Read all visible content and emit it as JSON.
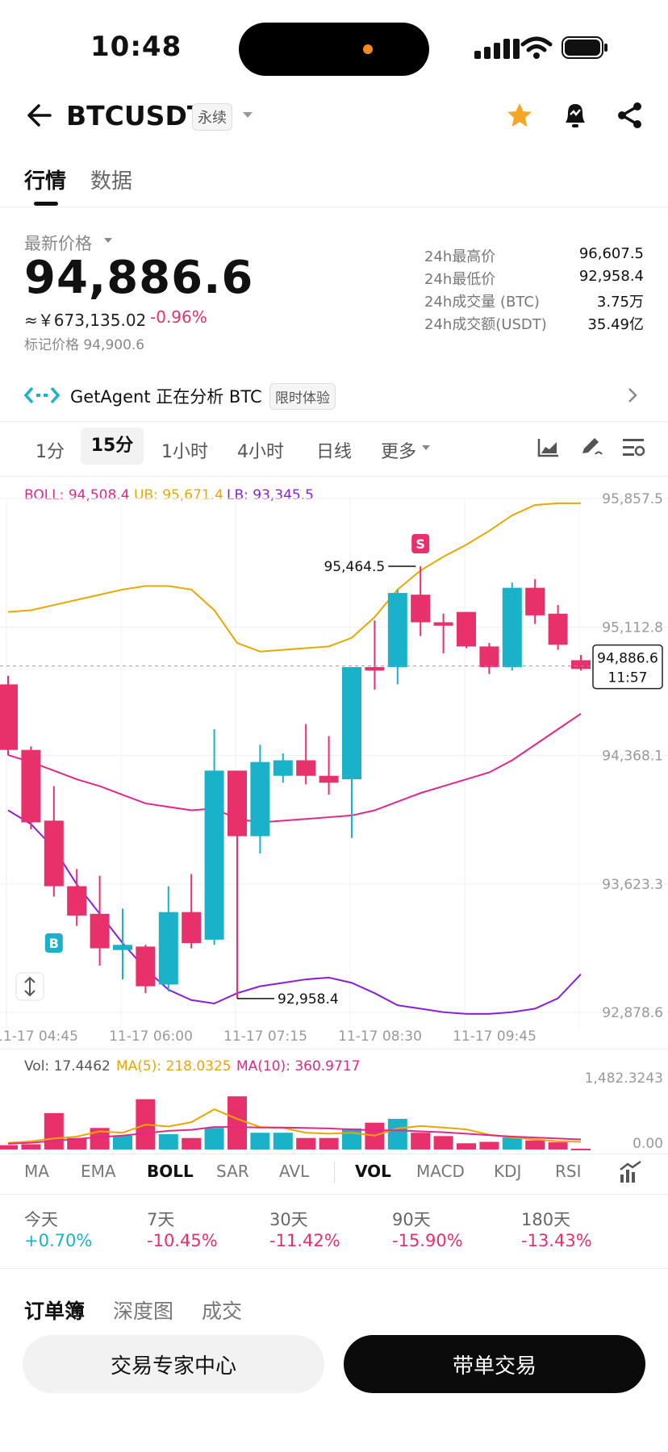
{
  "status_bar": {
    "time": "10:48"
  },
  "header": {
    "symbol": "BTCUSDT",
    "tag": "永续"
  },
  "tabs": [
    {
      "label": "行情"
    },
    {
      "label": "数据"
    }
  ],
  "price": {
    "label": "最新价格",
    "last": "94,886.6",
    "cny": "≈￥673,135.02",
    "change": "-0.96%",
    "mark": "标记价格 94,900.6"
  },
  "stats": [
    {
      "label": "24h最高价",
      "value": "96,607.5"
    },
    {
      "label": "24h最低价",
      "value": "92,958.4"
    },
    {
      "label": "24h成交量 (BTC)",
      "value": "3.75万"
    },
    {
      "label": "24h成交额(USDT)",
      "value": "35.49亿"
    }
  ],
  "banner": {
    "text": "GetAgent 正在分析 BTC",
    "badge": "限时体验"
  },
  "timeframes": [
    {
      "label": "1分"
    },
    {
      "label": "15分"
    },
    {
      "label": "1小时"
    },
    {
      "label": "4小时"
    },
    {
      "label": "日线"
    },
    {
      "label": "更多"
    }
  ],
  "active_timeframe": "15分",
  "colors": {
    "up": "#1ab2c8",
    "down": "#e8306a",
    "ub": "#e8a800",
    "boll": "#e0288a",
    "lb": "#8a1fd8",
    "star": "#f5a623"
  },
  "chart_data": {
    "type": "candlestick",
    "legend": {
      "boll": "BOLL: 94,508.4",
      "ub": "UB: 95,671.4",
      "lb": "LB: 93,345.5"
    },
    "y_ticks": [
      "95,857.5",
      "95,112.8",
      "94,368.1",
      "93,623.3",
      "92,878.6"
    ],
    "ylim": [
      92878.6,
      95857.5
    ],
    "x_ticks": [
      "11-17 04:45",
      "11-17 06:00",
      "11-17 07:15",
      "11-17 08:30",
      "11-17 09:45"
    ],
    "current_price": "94,886.6",
    "countdown": "11:57",
    "annotations": {
      "high": "95,464.5",
      "low": "92,958.4",
      "sell_marker": "S",
      "buy_marker": "B"
    },
    "candles": [
      {
        "o": 94780,
        "h": 94830,
        "c": 94400,
        "l": 94370
      },
      {
        "o": 94400,
        "h": 94420,
        "c": 93980,
        "l": 93940
      },
      {
        "o": 93990,
        "h": 94190,
        "c": 93610,
        "l": 93550
      },
      {
        "o": 93610,
        "h": 93710,
        "c": 93440,
        "l": 93380
      },
      {
        "o": 93450,
        "h": 93670,
        "c": 93250,
        "l": 93150
      },
      {
        "o": 93240,
        "h": 93480,
        "c": 93270,
        "l": 93070
      },
      {
        "o": 93260,
        "h": 93270,
        "c": 93030,
        "l": 92990
      },
      {
        "o": 93040,
        "h": 93610,
        "c": 93460,
        "l": 93000
      },
      {
        "o": 93460,
        "h": 93680,
        "c": 93280,
        "l": 93250
      },
      {
        "o": 93300,
        "h": 94520,
        "c": 94280,
        "l": 93270
      },
      {
        "o": 94280,
        "h": 94280,
        "c": 93900,
        "l": 92958.4
      },
      {
        "o": 93900,
        "h": 94430,
        "c": 94330,
        "l": 93800
      },
      {
        "o": 94250,
        "h": 94380,
        "c": 94340,
        "l": 94210
      },
      {
        "o": 94340,
        "h": 94550,
        "c": 94250,
        "l": 94200
      },
      {
        "o": 94250,
        "h": 94480,
        "c": 94210,
        "l": 94140
      },
      {
        "o": 94230,
        "h": 94880,
        "c": 94880,
        "l": 93890
      },
      {
        "o": 94880,
        "h": 95150,
        "c": 94860,
        "l": 94750
      },
      {
        "o": 94880,
        "h": 95330,
        "c": 95310,
        "l": 94780
      },
      {
        "o": 95300,
        "h": 95464.5,
        "c": 95140,
        "l": 95060
      },
      {
        "o": 95140,
        "h": 95190,
        "c": 95120,
        "l": 94960
      },
      {
        "o": 95200,
        "h": 95200,
        "c": 95000,
        "l": 94990
      },
      {
        "o": 95000,
        "h": 95020,
        "c": 94880,
        "l": 94840
      },
      {
        "o": 94880,
        "h": 95370,
        "c": 95340,
        "l": 94860
      },
      {
        "o": 95340,
        "h": 95390,
        "c": 95180,
        "l": 95130
      },
      {
        "o": 95190,
        "h": 95240,
        "c": 95010,
        "l": 94980
      },
      {
        "o": 94920,
        "h": 94950,
        "c": 94870,
        "l": 94860
      }
    ],
    "ub_line": [
      95200,
      95210,
      95240,
      95270,
      95300,
      95330,
      95350,
      95350,
      95330,
      95210,
      95020,
      94970,
      94980,
      94990,
      95000,
      95050,
      95170,
      95330,
      95440,
      95520,
      95590,
      95670,
      95760,
      95820,
      95830,
      95830
    ],
    "mid_line": [
      94370,
      94330,
      94280,
      94230,
      94190,
      94140,
      94090,
      94070,
      94050,
      94060,
      94000,
      93980,
      93990,
      94000,
      94010,
      94020,
      94050,
      94100,
      94150,
      94190,
      94230,
      94270,
      94340,
      94430,
      94520,
      94610
    ],
    "lb_line": [
      94050,
      93970,
      93830,
      93620,
      93450,
      93280,
      93130,
      93010,
      92950,
      92930,
      92990,
      93030,
      93050,
      93070,
      93080,
      93050,
      92990,
      92920,
      92900,
      92880,
      92870,
      92870,
      92880,
      92900,
      92960,
      93100
    ]
  },
  "volume_data": {
    "legend": {
      "vol": "Vol: 17.4462",
      "ma5": "MA(5): 218.0325",
      "ma10": "MA(10): 360.9717"
    },
    "y_ticks": [
      "1,482.3243",
      "0.00"
    ],
    "ylim": [
      0,
      1482.3243
    ],
    "values": [
      90,
      110,
      760,
      240,
      450,
      290,
      1050,
      320,
      240,
      450,
      1110,
      350,
      350,
      240,
      240,
      440,
      560,
      640,
      350,
      280,
      130,
      160,
      250,
      190,
      150,
      17.4462
    ],
    "ma5": [
      140,
      170,
      230,
      270,
      380,
      350,
      520,
      480,
      570,
      840,
      640,
      470,
      450,
      350,
      330,
      350,
      290,
      440,
      490,
      460,
      420,
      310,
      250,
      210,
      170,
      160
    ],
    "ma10": [
      120,
      140,
      180,
      220,
      260,
      290,
      340,
      390,
      410,
      470,
      470,
      460,
      460,
      450,
      440,
      420,
      400,
      400,
      380,
      360,
      330,
      300,
      270,
      250,
      230,
      210
    ]
  },
  "indicators": [
    {
      "label": "MA"
    },
    {
      "label": "EMA"
    },
    {
      "label": "BOLL"
    },
    {
      "label": "SAR"
    },
    {
      "label": "AVL"
    },
    {
      "label": "VOL"
    },
    {
      "label": "MACD"
    },
    {
      "label": "KDJ"
    },
    {
      "label": "RSI"
    }
  ],
  "performance": [
    {
      "label": "今天",
      "value": "+0.70%"
    },
    {
      "label": "7天",
      "value": "-10.45%"
    },
    {
      "label": "30天",
      "value": "-11.42%"
    },
    {
      "label": "90天",
      "value": "-15.90%"
    },
    {
      "label": "180天",
      "value": "-13.43%"
    }
  ],
  "book_tabs": [
    {
      "label": "订单簿"
    },
    {
      "label": "深度图"
    },
    {
      "label": "成交"
    }
  ],
  "buttons": {
    "expert": "交易专家中心",
    "copy": "带单交易"
  }
}
